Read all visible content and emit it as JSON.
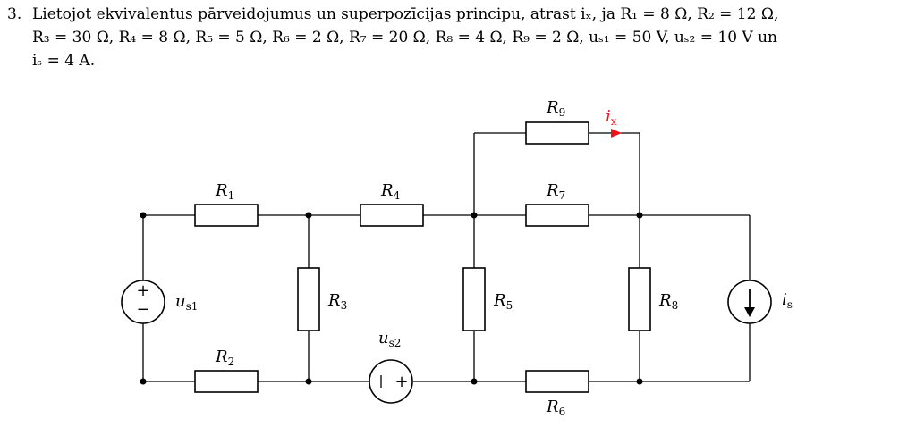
{
  "problem": {
    "number": "3.",
    "line1": "Lietojot ekvivalentus pārveidojumus un superpozīcijas principu, atrast iₓ, ja R₁ = 8 Ω, R₂ = 12 Ω,",
    "line2": "R₃ = 30 Ω, R₄ = 8 Ω, R₅ = 5 Ω, R₆ = 2 Ω, R₇ = 20 Ω, R₈ = 4 Ω, R₉ = 2 Ω, uₛ₁ = 50 V, uₛ₂ = 10 V un",
    "line3": "iₛ = 4 A."
  },
  "circuit": {
    "R1": {
      "sym": "R",
      "sub": "1"
    },
    "R2": {
      "sym": "R",
      "sub": "2"
    },
    "R3": {
      "sym": "R",
      "sub": "3"
    },
    "R4": {
      "sym": "R",
      "sub": "4"
    },
    "R5": {
      "sym": "R",
      "sub": "5"
    },
    "R6": {
      "sym": "R",
      "sub": "6"
    },
    "R7": {
      "sym": "R",
      "sub": "7"
    },
    "R8": {
      "sym": "R",
      "sub": "8"
    },
    "R9": {
      "sym": "R",
      "sub": "9"
    },
    "us1": {
      "sym": "u",
      "sub": "s1",
      "plus": "+",
      "minus": "−"
    },
    "us2": {
      "sym": "u",
      "sub": "s2",
      "plus": "+"
    },
    "is": {
      "sym": "i",
      "sub": "s"
    },
    "ix": {
      "sym": "i",
      "sub": "x",
      "color": "#e8141b"
    }
  }
}
